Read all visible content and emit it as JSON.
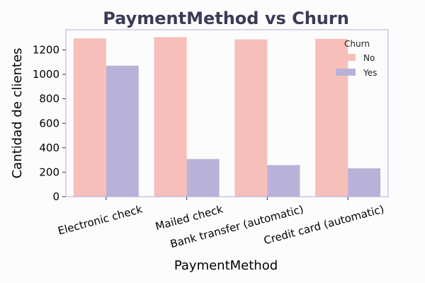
{
  "colors": {
    "background": "#fcfcfc",
    "title": "#3b3b58",
    "frame": "#b3acdc",
    "no": "#f6bfba",
    "yes": "#b9b2d8"
  },
  "chart_data": {
    "type": "bar",
    "title": "PaymentMethod vs Churn",
    "xlabel": "PaymentMethod",
    "ylabel": "Cantidad de clientes",
    "categories": [
      "Electronic check",
      "Mailed check",
      "Bank transfer (automatic)",
      "Credit card (automatic)"
    ],
    "series": [
      {
        "name": "No",
        "values": [
          1294,
          1304,
          1286,
          1290
        ]
      },
      {
        "name": "Yes",
        "values": [
          1071,
          308,
          258,
          232
        ]
      }
    ],
    "ylim": [
      0,
      1365
    ],
    "yticks": [
      0,
      200,
      400,
      600,
      800,
      1000,
      1200
    ],
    "legend": {
      "title": "Churn",
      "position": "top-right"
    },
    "grid": false
  }
}
